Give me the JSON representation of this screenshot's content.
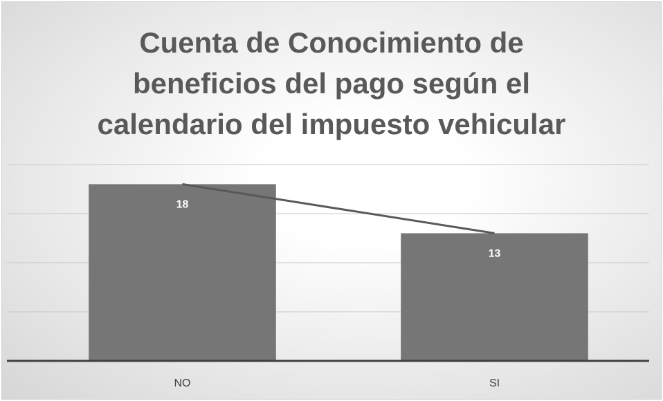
{
  "chart_data": {
    "type": "bar",
    "title": "Cuenta de Conocimiento de beneficios del pago según el calendario del impuesto vehicular",
    "categories": [
      "NO",
      "SI"
    ],
    "values": [
      18,
      13
    ],
    "color": "#767676",
    "line": true,
    "line_color": "#595959",
    "ylim": [
      0,
      20
    ],
    "yticks": [
      0,
      5,
      10,
      15,
      20
    ],
    "grid": true
  }
}
